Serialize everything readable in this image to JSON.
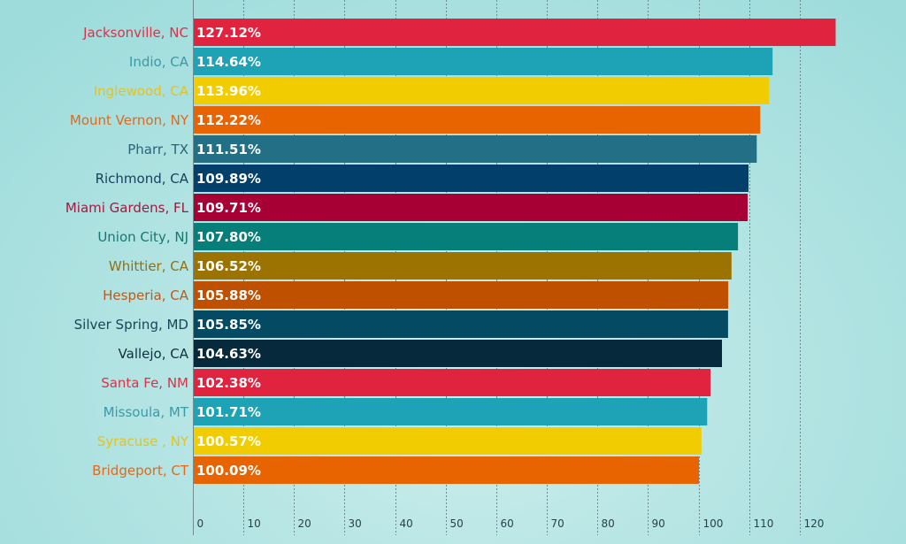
{
  "chart_data": {
    "type": "bar",
    "orientation": "horizontal",
    "title": "",
    "xlabel": "",
    "ylabel": "",
    "xlim": [
      0,
      127.12
    ],
    "grid": true,
    "x_ticks": [
      0,
      10,
      20,
      30,
      40,
      50,
      60,
      70,
      80,
      90,
      100,
      110,
      120
    ],
    "x_tick_labels": [
      "0",
      "10",
      "20",
      "30",
      "40",
      "50",
      "60",
      "70",
      "80",
      "90",
      "100",
      "110",
      "120"
    ],
    "categories": [
      "Jacksonville, NC",
      "Indio, CA",
      "Inglewood, CA",
      "Mount Vernon, NY",
      "Pharr, TX",
      "Richmond, CA",
      "Miami Gardens, FL",
      "Union City, NJ",
      "Whittier, CA",
      "Hesperia, CA",
      "Silver Spring, MD",
      "Vallejo, CA",
      "Santa Fe, NM",
      "Missoula, MT",
      "Syracuse , NY",
      "Bridgeport, CT"
    ],
    "values": [
      127.12,
      114.64,
      113.96,
      112.22,
      111.51,
      109.89,
      109.71,
      107.8,
      106.52,
      105.88,
      105.85,
      104.63,
      102.38,
      101.71,
      100.57,
      100.09
    ],
    "value_labels": [
      "127.12%",
      "114.64%",
      "113.96%",
      "112.22%",
      "111.51%",
      "109.89%",
      "109.71%",
      "107.80%",
      "106.52%",
      "105.88%",
      "105.85%",
      "104.63%",
      "102.38%",
      "101.71%",
      "100.57%",
      "100.09%"
    ],
    "bar_colors": [
      "#e0243f",
      "#1da3b5",
      "#f0cc00",
      "#e86400",
      "#226f86",
      "#023f6b",
      "#a60035",
      "#067f7a",
      "#9c7300",
      "#bf5000",
      "#044a62",
      "#062a3b",
      "#e0243f",
      "#1da3b5",
      "#f0cc00",
      "#e86400"
    ],
    "label_colors": [
      "#d9334a",
      "#3a9aa8",
      "#e8c21a",
      "#df6a1e",
      "#2a6278",
      "#163f5e",
      "#a3183f",
      "#18776f",
      "#946e12",
      "#b95a1e",
      "#1b4556",
      "#10303f",
      "#d9334a",
      "#3a9aa8",
      "#e8c21a",
      "#df6a1e"
    ]
  }
}
